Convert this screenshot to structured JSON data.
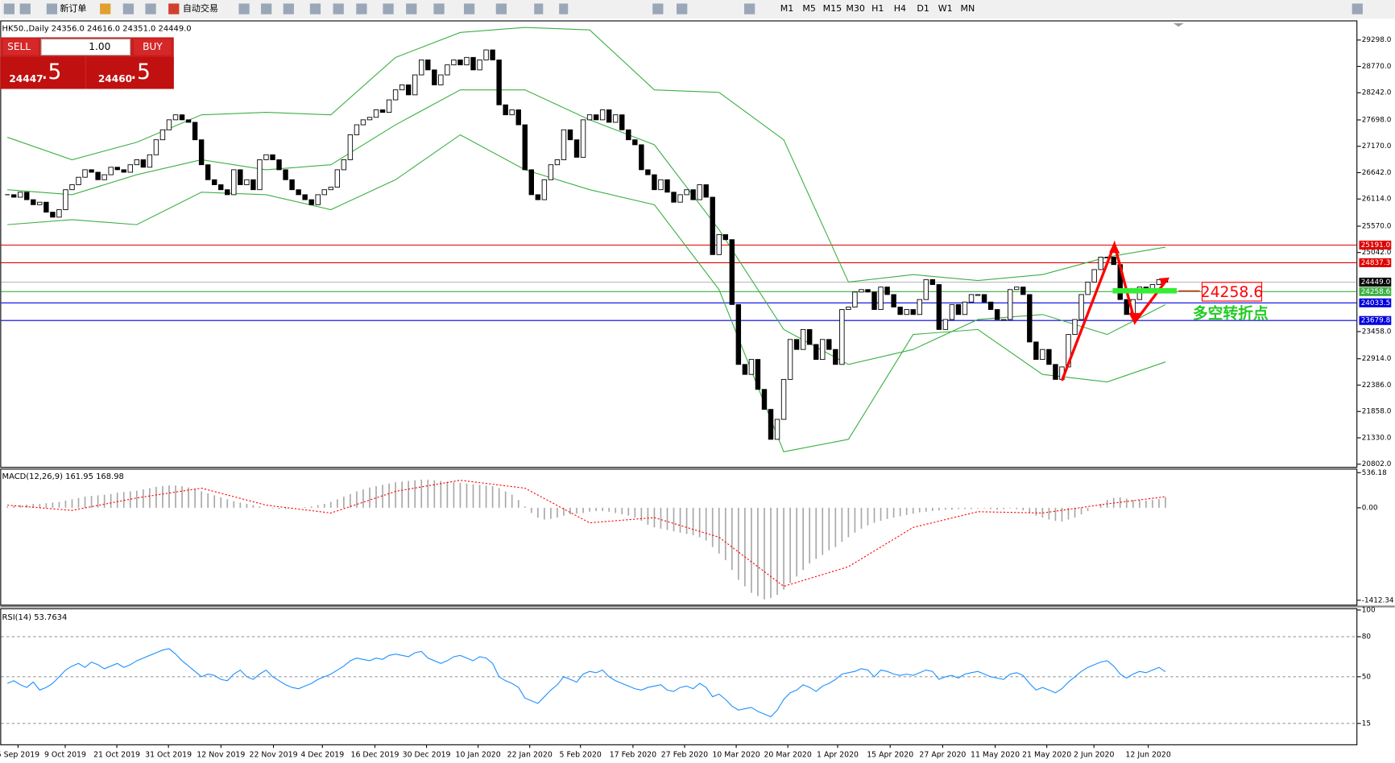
{
  "toolbar": {
    "new_order": "新订单",
    "auto_trading": "自动交易",
    "timeframes": [
      "M1",
      "M5",
      "M15",
      "M30",
      "H1",
      "H4",
      "D1",
      "W1",
      "MN"
    ]
  },
  "quote_panel": {
    "sell": "SELL",
    "buy": "BUY",
    "lots": "1.00",
    "sell_big": "24447",
    "sell_small": ".5",
    "buy_big": "24460",
    "buy_small": ".5"
  },
  "annotation": {
    "price": "24258.6",
    "note": "多空转折点"
  },
  "date_axis": [
    "5 Sep 2019",
    "9 Oct 2019",
    "21 Oct 2019",
    "31 Oct 2019",
    "12 Nov 2019",
    "22 Nov 2019",
    "4 Dec 2019",
    "16 Dec 2019",
    "30 Dec 2019",
    "10 Jan 2020",
    "22 Jan 2020",
    "5 Feb 2020",
    "17 Feb 2020",
    "27 Feb 2020",
    "10 Mar 2020",
    "20 Mar 2020",
    "1 Apr 2020",
    "15 Apr 2020",
    "27 Apr 2020",
    "11 May 2020",
    "21 May 2020",
    "2 Jun 2020",
    "12 Jun 2020"
  ],
  "chart_data": [
    {
      "type": "candlestick",
      "title": "HK50.,Daily  24356.0 24616.0 24351.0 24449.0",
      "close": [
        26200,
        26150,
        26250,
        26100,
        26000,
        26050,
        25850,
        25750,
        25900,
        26300,
        26400,
        26550,
        26700,
        26650,
        26500,
        26600,
        26750,
        26700,
        26650,
        26800,
        26900,
        26750,
        27000,
        27300,
        27500,
        27700,
        27800,
        27700,
        27650,
        27300,
        26800,
        26500,
        26400,
        26300,
        26200,
        26700,
        26400,
        26500,
        26300,
        26900,
        27000,
        26900,
        26700,
        26500,
        26300,
        26200,
        26100,
        26000,
        26200,
        26300,
        26350,
        26700,
        26900,
        27400,
        27600,
        27700,
        27750,
        27900,
        27850,
        28100,
        28300,
        28400,
        28200,
        28600,
        28900,
        28700,
        28400,
        28600,
        28800,
        28900,
        28800,
        28950,
        28700,
        28900,
        29100,
        28900,
        28000,
        27800,
        27900,
        27600,
        26700,
        26200,
        26100,
        26500,
        26800,
        26900,
        27500,
        27300,
        26950,
        27700,
        27800,
        27700,
        27900,
        27650,
        27800,
        27500,
        27300,
        27200,
        26700,
        26600,
        26300,
        26500,
        26250,
        26050,
        26200,
        26300,
        26100,
        26400,
        26150,
        25000,
        25400,
        25300,
        24000,
        22800,
        22600,
        22900,
        22300,
        21900,
        21300,
        21700,
        22500,
        23300,
        23100,
        23500,
        23200,
        22900,
        23300,
        23100,
        22800,
        23900,
        23950,
        24250,
        24300,
        24250,
        23900,
        24350,
        24200,
        23950,
        23800,
        23900,
        23800,
        24100,
        24500,
        24400,
        23500,
        23700,
        24000,
        23800,
        24050,
        24200,
        24200,
        24050,
        23900,
        23700,
        23700,
        24300,
        24350,
        24200,
        23250,
        22900,
        23100,
        22800,
        22500,
        22750,
        23400,
        23700,
        24200,
        24450,
        24700,
        24950,
        24950,
        24800,
        24100,
        23800,
        24100,
        24350,
        24300,
        24400,
        24500,
        24449
      ],
      "up_color": "#ffffff",
      "down_color": "#000000",
      "bands": {
        "color": "#3cb043",
        "x": [
          0,
          10,
          20,
          30,
          40,
          50,
          60,
          70,
          80,
          90,
          100,
          110,
          120,
          130,
          140,
          150,
          160,
          170,
          179
        ],
        "upper": [
          27350,
          26900,
          27250,
          27800,
          27850,
          27800,
          28950,
          29450,
          29550,
          29500,
          28300,
          28250,
          27300,
          24450,
          24600,
          24480,
          24600,
          24950,
          25150
        ],
        "middle": [
          26300,
          26200,
          26600,
          26900,
          26700,
          26800,
          27600,
          28300,
          28300,
          27700,
          27200,
          25500,
          23500,
          22800,
          23100,
          23700,
          23800,
          23400,
          24000
        ],
        "lower": [
          25600,
          25700,
          25600,
          26250,
          26200,
          25900,
          26500,
          27400,
          26700,
          26300,
          26000,
          24300,
          21050,
          21300,
          23400,
          23500,
          22600,
          22450,
          22850
        ]
      },
      "levels": [
        {
          "value": 25191.0,
          "label": "25191.0",
          "color": "#e00000"
        },
        {
          "value": 24837.3,
          "label": "24837.3",
          "color": "#e00000"
        },
        {
          "value": 24449.0,
          "label": "24449.0",
          "color": "#000000"
        },
        {
          "value": 24258.6,
          "label": "24258.6",
          "color": "#3cb043"
        },
        {
          "value": 24033.5,
          "label": "24033.5",
          "color": "#0000e0"
        },
        {
          "value": 23679.8,
          "label": "23679.8",
          "color": "#0000e0"
        }
      ],
      "ylim": [
        20766,
        29619
      ],
      "yticks": [
        {
          "value": 29298,
          "label": "29298.0"
        },
        {
          "value": 28770,
          "label": "28770.0"
        },
        {
          "value": 28242,
          "label": "28242.0"
        },
        {
          "value": 27698,
          "label": "27698.0"
        },
        {
          "value": 27170,
          "label": "27170.0"
        },
        {
          "value": 26642,
          "label": "26642.0"
        },
        {
          "value": 26114,
          "label": "26114.0"
        },
        {
          "value": 25570,
          "label": "25570.0"
        },
        {
          "value": 25042,
          "label": "25042.0"
        },
        {
          "value": 23458,
          "label": "23458.0"
        },
        {
          "value": 22914,
          "label": "22914.0"
        },
        {
          "value": 22386,
          "label": "22386.0"
        },
        {
          "value": 21858,
          "label": "21858.0"
        },
        {
          "value": 21330,
          "label": "21330.0"
        },
        {
          "value": 20802,
          "label": "20802.0"
        }
      ]
    },
    {
      "type": "macd",
      "title": "MACD(12,26,9) 161.95 168.98",
      "color": "#a8a8a8",
      "values": [
        20,
        30,
        40,
        50,
        60,
        60,
        70,
        80,
        90,
        110,
        130,
        150,
        170,
        180,
        190,
        200,
        210,
        230,
        240,
        250,
        260,
        280,
        300,
        320,
        330,
        340,
        340,
        330,
        310,
        280,
        250,
        220,
        190,
        160,
        130,
        100,
        80,
        60,
        40,
        20,
        0,
        -10,
        -20,
        -20,
        -10,
        0,
        10,
        20,
        40,
        60,
        90,
        130,
        170,
        210,
        250,
        280,
        310,
        330,
        350,
        370,
        390,
        400,
        410,
        420,
        430,
        430,
        420,
        410,
        400,
        390,
        380,
        370,
        360,
        350,
        340,
        330,
        300,
        250,
        200,
        120,
        20,
        -80,
        -150,
        -180,
        -170,
        -150,
        -120,
        -100,
        -90,
        -80,
        -60,
        -50,
        -50,
        -60,
        -80,
        -100,
        -120,
        -150,
        -200,
        -260,
        -300,
        -320,
        -340,
        -360,
        -380,
        -400,
        -420,
        -450,
        -500,
        -600,
        -700,
        -800,
        -950,
        -1100,
        -1200,
        -1300,
        -1350,
        -1400,
        -1380,
        -1330,
        -1250,
        -1150,
        -1050,
        -950,
        -850,
        -780,
        -720,
        -650,
        -600,
        -520,
        -450,
        -380,
        -320,
        -270,
        -230,
        -200,
        -170,
        -150,
        -130,
        -110,
        -90,
        -70,
        -60,
        -50,
        -40,
        -30,
        -30,
        -20,
        -20,
        -20,
        -10,
        -10,
        -20,
        -30,
        -20,
        -10,
        -20,
        -40,
        -80,
        -120,
        -150,
        -180,
        -200,
        -210,
        -180,
        -150,
        -100,
        -50,
        0,
        60,
        120,
        150,
        160,
        140,
        120,
        120,
        110,
        120,
        130,
        161.95
      ],
      "signal": {
        "color": "#ff0000",
        "x": [
          0,
          10,
          20,
          30,
          40,
          50,
          60,
          70,
          80,
          90,
          100,
          110,
          120,
          130,
          140,
          150,
          160,
          170,
          179
        ],
        "values": [
          40,
          -40,
          150,
          300,
          40,
          -80,
          250,
          420,
          300,
          -230,
          -150,
          -450,
          -1200,
          -900,
          -300,
          -60,
          -80,
          60,
          168.98
        ]
      },
      "ylim": [
        -1494,
        584
      ],
      "yticks": [
        {
          "value": 536.18,
          "label": "536.18"
        },
        {
          "value": 0,
          "label": "0.00"
        },
        {
          "value": -1412.34,
          "label": "-1412.34"
        }
      ]
    },
    {
      "type": "line",
      "title": "RSI(14) 53.7634",
      "color": "#1e90ff",
      "values": [
        45,
        47,
        44,
        42,
        46,
        40,
        42,
        45,
        50,
        55,
        58,
        60,
        57,
        61,
        59,
        56,
        58,
        60,
        57,
        59,
        62,
        64,
        66,
        68,
        70,
        71,
        67,
        62,
        58,
        54,
        50,
        52,
        51,
        48,
        47,
        52,
        55,
        50,
        48,
        52,
        55,
        50,
        47,
        44,
        42,
        41,
        43,
        45,
        48,
        50,
        52,
        55,
        58,
        62,
        64,
        63,
        62,
        64,
        63,
        66,
        67,
        66,
        65,
        68,
        69,
        64,
        62,
        60,
        62,
        65,
        66,
        64,
        62,
        65,
        64,
        60,
        50,
        47,
        45,
        42,
        34,
        32,
        30,
        35,
        40,
        44,
        50,
        48,
        46,
        52,
        54,
        53,
        55,
        50,
        47,
        45,
        43,
        41,
        40,
        42,
        43,
        44,
        40,
        39,
        42,
        43,
        41,
        45,
        42,
        35,
        37,
        33,
        28,
        25,
        26,
        27,
        24,
        22,
        20,
        25,
        33,
        38,
        40,
        44,
        42,
        39,
        43,
        45,
        48,
        52,
        53,
        54,
        56,
        55,
        50,
        55,
        54,
        52,
        51,
        52,
        51,
        53,
        55,
        54,
        48,
        50,
        51,
        49,
        52,
        53,
        54,
        52,
        50,
        49,
        48,
        52,
        53,
        51,
        45,
        40,
        42,
        40,
        38,
        41,
        46,
        50,
        54,
        57,
        59,
        61,
        62,
        58,
        52,
        49,
        52,
        54,
        53,
        55,
        57,
        53.7634
      ],
      "ylim": [
        0,
        100
      ],
      "yticks": [
        100,
        80,
        50,
        15
      ],
      "grid": true
    }
  ]
}
